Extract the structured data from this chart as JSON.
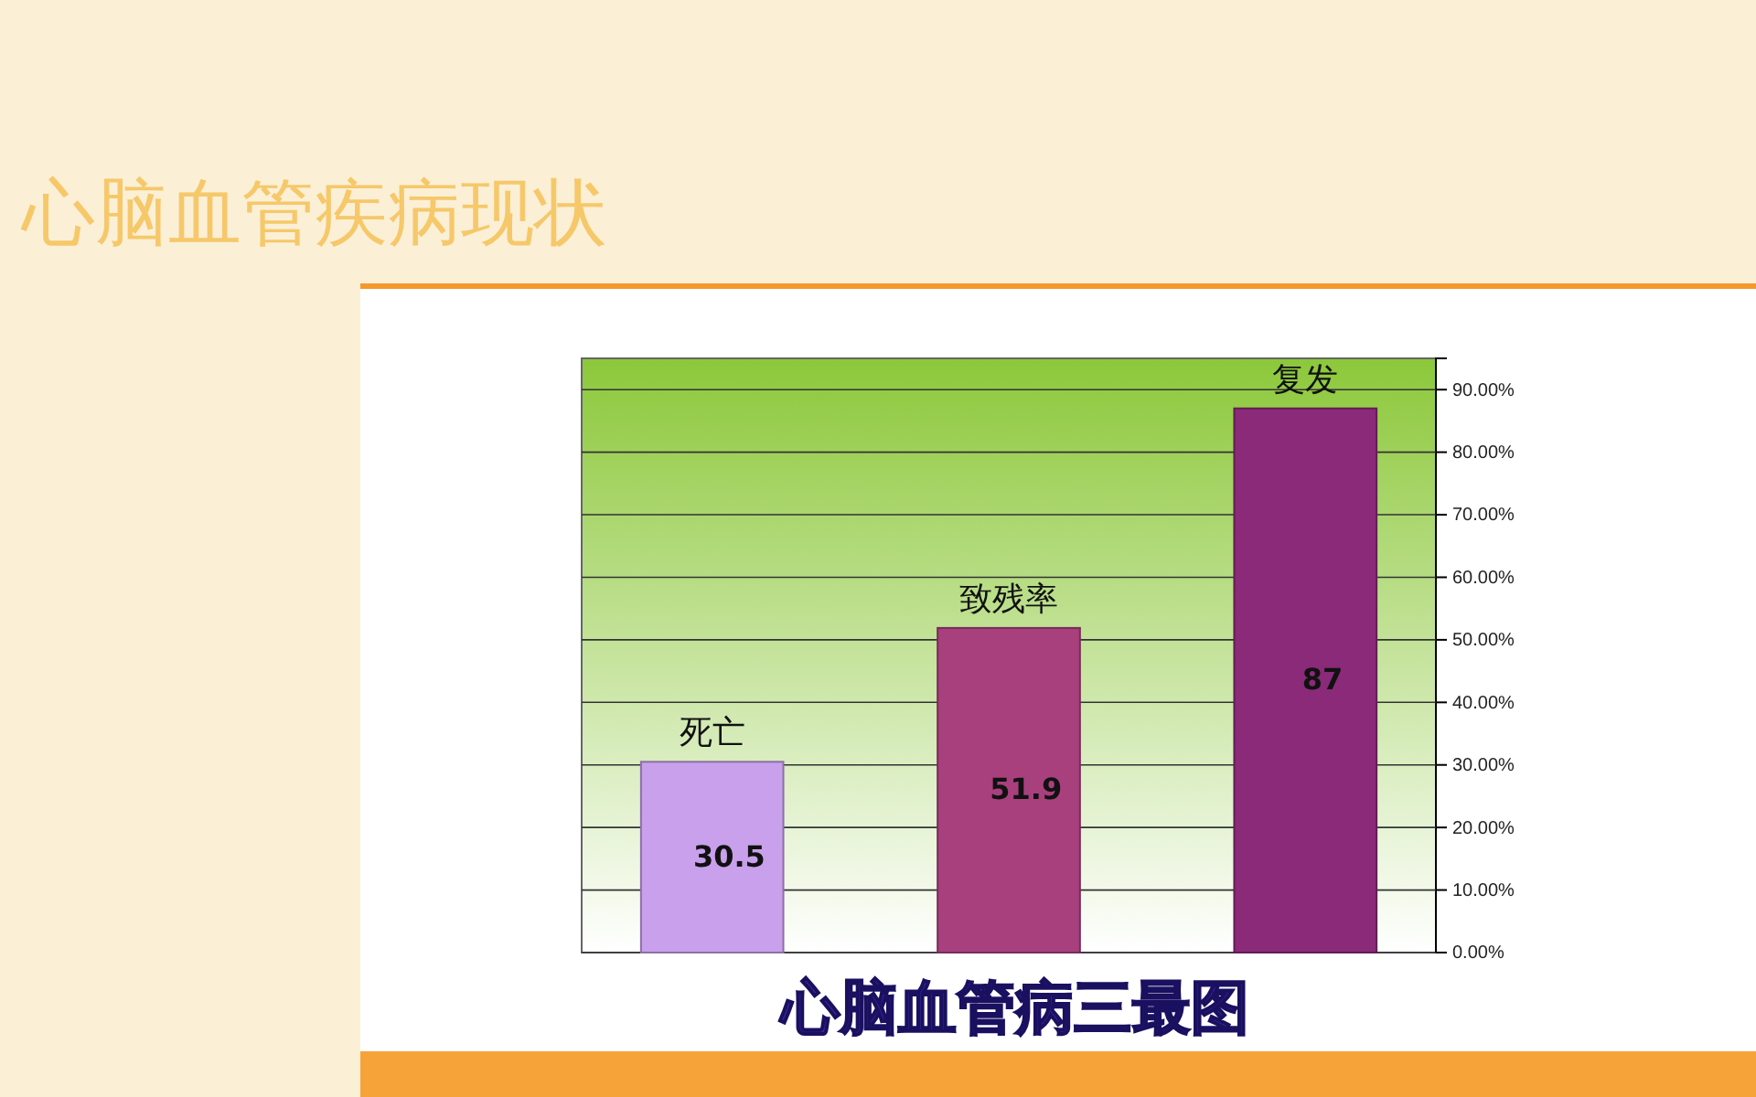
{
  "chart_data": {
    "type": "bar",
    "title": "心脑血管疾病现状",
    "subtitle": "心脑血管病三最图",
    "categories": [
      "死亡",
      "致残率",
      "复发"
    ],
    "values": [
      30.5,
      51.9,
      87
    ],
    "colors": [
      "#c8a0ec",
      "#a8407e",
      "#8a2a78"
    ],
    "data_labels": true,
    "grid": "y",
    "ylim": [
      0,
      95
    ],
    "yticks": [
      {
        "value": 0,
        "label": "0.00%"
      },
      {
        "value": 10,
        "label": "10.00%"
      },
      {
        "value": 20,
        "label": "20.00%"
      },
      {
        "value": 30,
        "label": "30.00%"
      },
      {
        "value": 40,
        "label": "40.00%"
      },
      {
        "value": 50,
        "label": "50.00%"
      },
      {
        "value": 60,
        "label": "60.00%"
      },
      {
        "value": 70,
        "label": "70.00%"
      },
      {
        "value": 80,
        "label": "80.00%"
      },
      {
        "value": 90,
        "label": "90.00%"
      }
    ]
  }
}
